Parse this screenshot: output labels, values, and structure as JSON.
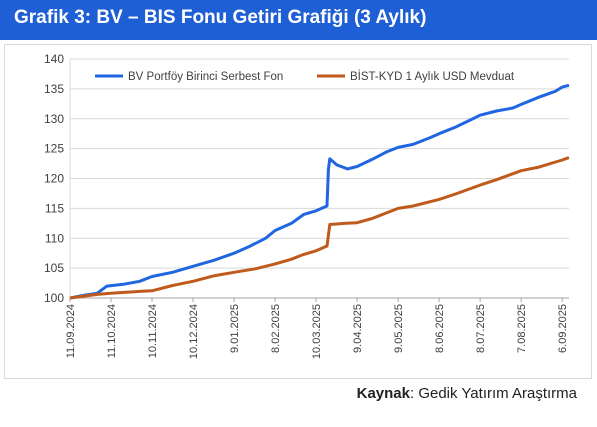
{
  "header": {
    "title": "Grafik 3: BV – BIS Fonu Getiri Grafiği (3 Aylık)"
  },
  "footer": {
    "source_label": "Kaynak",
    "source_text": ": Gedik Yatırım Araştırma"
  },
  "colors": {
    "header_bg": "#1f5fd6",
    "series_blue": "#1f66e0",
    "series_orange": "#c05a1c",
    "grid": "#d9d9d9"
  },
  "chart_data": {
    "type": "line",
    "title": "",
    "xlabel": "",
    "ylabel": "",
    "ylim": [
      100,
      140
    ],
    "yticks": [
      100,
      105,
      110,
      115,
      120,
      125,
      130,
      135,
      140
    ],
    "xlim": [
      "2024-09-11",
      "2025-09-11"
    ],
    "xticks": [
      "11.09.2024",
      "11.10.2024",
      "10.11.2024",
      "10.12.2024",
      "9.01.2025",
      "8.02.2025",
      "10.03.2025",
      "9.04.2025",
      "9.05.2025",
      "8.06.2025",
      "8.07.2025",
      "7.08.2025",
      "6.09.2025"
    ],
    "grid": "horizontal",
    "legend_position": "top",
    "series": [
      {
        "name": "BV Portföy Birinci Serbest Fon",
        "color": "#1f66e0",
        "points": [
          [
            "2024-09-11",
            100.0
          ],
          [
            "2024-09-20",
            100.4
          ],
          [
            "2024-10-01",
            100.8
          ],
          [
            "2024-10-08",
            102.0
          ],
          [
            "2024-10-20",
            102.3
          ],
          [
            "2024-11-01",
            102.8
          ],
          [
            "2024-11-10",
            103.6
          ],
          [
            "2024-11-25",
            104.3
          ],
          [
            "2024-12-10",
            105.3
          ],
          [
            "2024-12-25",
            106.3
          ],
          [
            "2025-01-09",
            107.5
          ],
          [
            "2025-01-20",
            108.6
          ],
          [
            "2025-02-01",
            110.0
          ],
          [
            "2025-02-08",
            111.3
          ],
          [
            "2025-02-20",
            112.5
          ],
          [
            "2025-03-01",
            114.0
          ],
          [
            "2025-03-10",
            114.6
          ],
          [
            "2025-03-18",
            115.4
          ],
          [
            "2025-03-19",
            121.5
          ],
          [
            "2025-03-20",
            123.3
          ],
          [
            "2025-03-25",
            122.3
          ],
          [
            "2025-04-02",
            121.6
          ],
          [
            "2025-04-09",
            122.0
          ],
          [
            "2025-04-20",
            123.2
          ],
          [
            "2025-05-01",
            124.5
          ],
          [
            "2025-05-09",
            125.2
          ],
          [
            "2025-05-20",
            125.7
          ],
          [
            "2025-06-01",
            126.8
          ],
          [
            "2025-06-08",
            127.5
          ],
          [
            "2025-06-20",
            128.6
          ],
          [
            "2025-07-01",
            129.8
          ],
          [
            "2025-07-08",
            130.6
          ],
          [
            "2025-07-20",
            131.3
          ],
          [
            "2025-08-01",
            131.8
          ],
          [
            "2025-08-07",
            132.4
          ],
          [
            "2025-08-20",
            133.6
          ],
          [
            "2025-09-01",
            134.6
          ],
          [
            "2025-09-06",
            135.3
          ],
          [
            "2025-09-11",
            135.6
          ]
        ]
      },
      {
        "name": "BİST-KYD 1 Aylık USD Mevduat",
        "color": "#c05a1c",
        "points": [
          [
            "2024-09-11",
            100.0
          ],
          [
            "2024-10-01",
            100.6
          ],
          [
            "2024-10-11",
            100.8
          ],
          [
            "2024-11-01",
            101.1
          ],
          [
            "2024-11-10",
            101.2
          ],
          [
            "2024-11-25",
            102.1
          ],
          [
            "2024-12-10",
            102.8
          ],
          [
            "2024-12-25",
            103.7
          ],
          [
            "2025-01-09",
            104.3
          ],
          [
            "2025-01-25",
            104.9
          ],
          [
            "2025-02-08",
            105.7
          ],
          [
            "2025-02-20",
            106.5
          ],
          [
            "2025-03-01",
            107.3
          ],
          [
            "2025-03-10",
            107.9
          ],
          [
            "2025-03-18",
            108.7
          ],
          [
            "2025-03-19",
            110.5
          ],
          [
            "2025-03-20",
            112.3
          ],
          [
            "2025-04-01",
            112.5
          ],
          [
            "2025-04-09",
            112.6
          ],
          [
            "2025-04-20",
            113.3
          ],
          [
            "2025-05-01",
            114.3
          ],
          [
            "2025-05-09",
            115.0
          ],
          [
            "2025-05-20",
            115.4
          ],
          [
            "2025-06-08",
            116.5
          ],
          [
            "2025-06-20",
            117.4
          ],
          [
            "2025-07-08",
            118.9
          ],
          [
            "2025-07-20",
            119.8
          ],
          [
            "2025-08-07",
            121.3
          ],
          [
            "2025-08-20",
            121.9
          ],
          [
            "2025-09-06",
            123.1
          ],
          [
            "2025-09-11",
            123.5
          ]
        ]
      }
    ]
  }
}
